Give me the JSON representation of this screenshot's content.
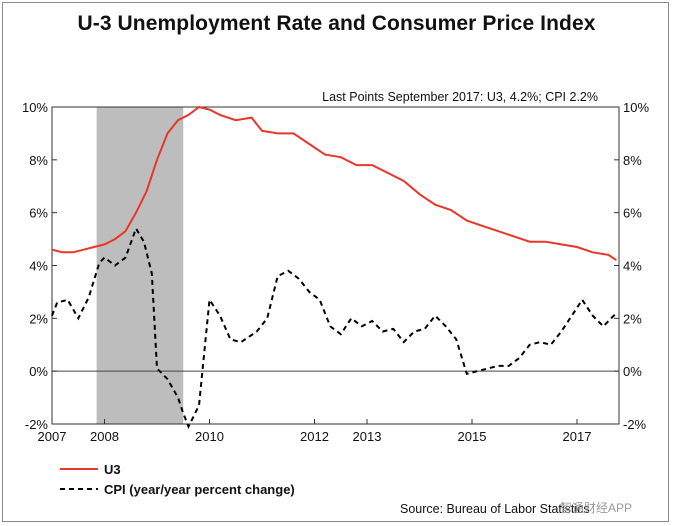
{
  "title": "U-3 Unemployment Rate and Consumer Price Index",
  "last_points_note": "Last Points September 2017: U3, 4.2%; CPI 2.2%",
  "source": "Source: Bureau of Labor Statistics",
  "watermark": "智通财经APP",
  "colors": {
    "u3": "#e8372a",
    "cpi": "#000000",
    "recession": "#bdbdbd"
  },
  "chart_data": {
    "type": "line",
    "x_axis": {
      "min": 2007.0,
      "max": 2017.8,
      "ticks": [
        2007,
        2008,
        2010,
        2012,
        2013,
        2015,
        2017
      ],
      "tick_labels": [
        "2007",
        "2008",
        "2010",
        "2012",
        "2013",
        "2015",
        "2017"
      ]
    },
    "y_axis": {
      "min": -2,
      "max": 10,
      "ticks": [
        -2,
        0,
        2,
        4,
        6,
        8,
        10
      ],
      "left_tick_labels": [
        "-2%",
        "0%",
        "2%",
        "4%",
        "6%",
        "8%",
        "10%"
      ],
      "right_tick_labels": [
        "-2%",
        "0%",
        "2%",
        "4%",
        "6%",
        "8%",
        "10%"
      ]
    },
    "zero_line": 0,
    "recession": {
      "start": 2007.85,
      "end": 2009.5
    },
    "legend": {
      "placement": "bottom-left",
      "entries": [
        "U3",
        "CPI (year/year percent change)"
      ]
    },
    "series": [
      {
        "name": "U3",
        "style": "solid",
        "x": [
          2007.0,
          2007.2,
          2007.4,
          2007.6,
          2007.8,
          2008.0,
          2008.2,
          2008.4,
          2008.6,
          2008.8,
          2009.0,
          2009.2,
          2009.4,
          2009.6,
          2009.8,
          2010.0,
          2010.2,
          2010.5,
          2010.8,
          2011.0,
          2011.3,
          2011.6,
          2011.9,
          2012.2,
          2012.5,
          2012.8,
          2013.1,
          2013.4,
          2013.7,
          2014.0,
          2014.3,
          2014.6,
          2014.9,
          2015.2,
          2015.5,
          2015.8,
          2016.1,
          2016.4,
          2016.7,
          2017.0,
          2017.3,
          2017.6,
          2017.75
        ],
        "values": [
          4.6,
          4.5,
          4.5,
          4.6,
          4.7,
          4.8,
          5.0,
          5.3,
          6.0,
          6.8,
          8.0,
          9.0,
          9.5,
          9.7,
          10.0,
          9.9,
          9.7,
          9.5,
          9.6,
          9.1,
          9.0,
          9.0,
          8.6,
          8.2,
          8.1,
          7.8,
          7.8,
          7.5,
          7.2,
          6.7,
          6.3,
          6.1,
          5.7,
          5.5,
          5.3,
          5.1,
          4.9,
          4.9,
          4.8,
          4.7,
          4.5,
          4.4,
          4.2
        ]
      },
      {
        "name": "CPI (year/year percent change)",
        "style": "dashed",
        "x": [
          2007.0,
          2007.1,
          2007.3,
          2007.5,
          2007.7,
          2007.9,
          2008.0,
          2008.2,
          2008.4,
          2008.6,
          2008.75,
          2008.9,
          2009.0,
          2009.2,
          2009.4,
          2009.5,
          2009.6,
          2009.8,
          2010.0,
          2010.2,
          2010.4,
          2010.6,
          2010.9,
          2011.1,
          2011.3,
          2011.5,
          2011.7,
          2011.9,
          2012.1,
          2012.3,
          2012.5,
          2012.7,
          2012.9,
          2013.1,
          2013.3,
          2013.5,
          2013.7,
          2013.9,
          2014.1,
          2014.3,
          2014.5,
          2014.7,
          2014.9,
          2015.1,
          2015.3,
          2015.5,
          2015.7,
          2015.9,
          2016.1,
          2016.3,
          2016.5,
          2016.7,
          2016.9,
          2017.1,
          2017.3,
          2017.5,
          2017.75
        ],
        "values": [
          2.1,
          2.6,
          2.7,
          2.0,
          2.8,
          4.1,
          4.3,
          4.0,
          4.3,
          5.4,
          4.9,
          3.7,
          0.1,
          -0.3,
          -1.0,
          -1.6,
          -2.1,
          -1.3,
          2.7,
          2.1,
          1.2,
          1.1,
          1.5,
          2.0,
          3.6,
          3.8,
          3.5,
          3.0,
          2.7,
          1.7,
          1.4,
          2.0,
          1.7,
          1.9,
          1.5,
          1.6,
          1.1,
          1.5,
          1.6,
          2.1,
          1.7,
          1.2,
          -0.1,
          0.0,
          0.1,
          0.2,
          0.2,
          0.5,
          1.0,
          1.1,
          1.0,
          1.5,
          2.1,
          2.7,
          2.1,
          1.7,
          2.2
        ]
      }
    ]
  }
}
